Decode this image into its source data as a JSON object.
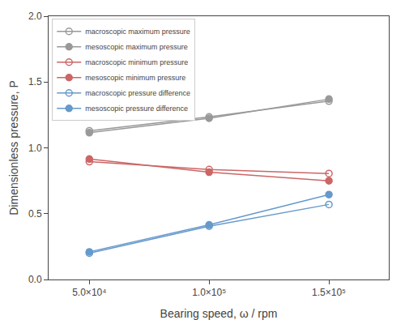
{
  "chart_data": {
    "type": "line",
    "xlabel": "Bearing speed, ω / rpm",
    "ylabel": "Dimensionless pressure, P",
    "x": [
      50000,
      100000,
      150000
    ],
    "series": [
      {
        "name": "macroscopic maximum pressure",
        "color": "#999999",
        "marker": "circle-open",
        "values": [
          1.13,
          1.235,
          1.355
        ]
      },
      {
        "name": "mesoscopic maximum pressure",
        "color": "#999999",
        "marker": "circle",
        "values": [
          1.115,
          1.225,
          1.37
        ]
      },
      {
        "name": "macroscopic minimum pressure",
        "color": "#cc6666",
        "marker": "circle-open",
        "values": [
          0.895,
          0.835,
          0.805
        ]
      },
      {
        "name": "mesoscopic minimum pressure",
        "color": "#cc6666",
        "marker": "circle",
        "values": [
          0.915,
          0.815,
          0.75
        ]
      },
      {
        "name": "macroscopic pressure difference",
        "color": "#6699cc",
        "marker": "circle-open",
        "values": [
          0.2,
          0.405,
          0.57
        ]
      },
      {
        "name": "mesoscopic pressure difference",
        "color": "#6699cc",
        "marker": "circle",
        "values": [
          0.21,
          0.415,
          0.645
        ]
      }
    ],
    "xlim": [
      33000,
      175000
    ],
    "xticks": [
      {
        "value": 50000,
        "label": "5.0×10⁴"
      },
      {
        "value": 100000,
        "label": "1.0×10⁵"
      },
      {
        "value": 150000,
        "label": "1.5×10⁵"
      }
    ],
    "ylim": [
      0.0,
      2.0
    ],
    "yticks": [
      {
        "value": 0.0,
        "label": "0.0"
      },
      {
        "value": 0.5,
        "label": "0.5"
      },
      {
        "value": 1.0,
        "label": "1.0"
      },
      {
        "value": 1.5,
        "label": "1.5"
      },
      {
        "value": 2.0,
        "label": "2.0"
      }
    ],
    "grid": false,
    "legend": "upper left"
  }
}
